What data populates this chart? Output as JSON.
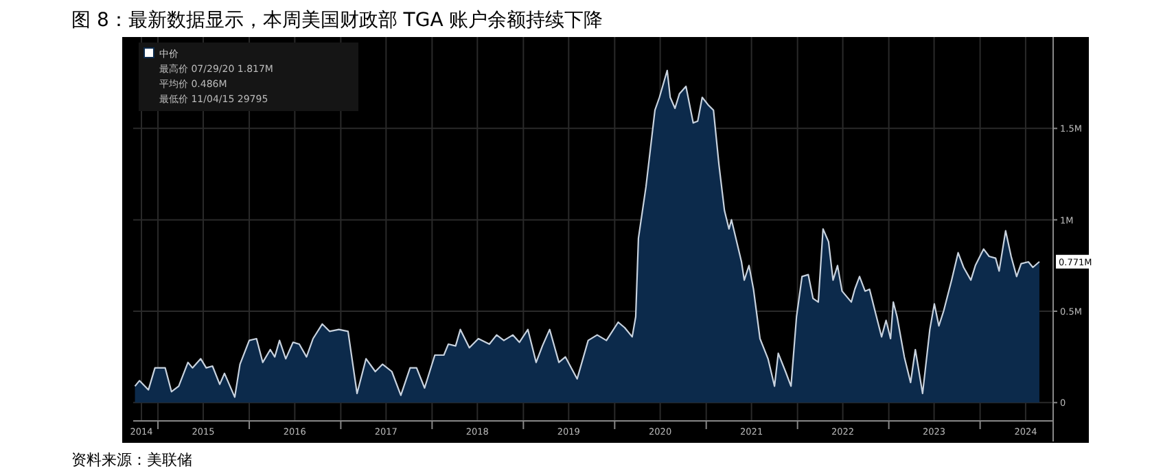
{
  "chart_data": {
    "type": "area",
    "title": "图 8：最新数据显示，本周美国财政部 TGA 账户余额持续下降",
    "annotations": [
      "资料来源：美联储",
      "最高价 07/29/20 1.817M",
      "平均价 0.486M",
      "最低价 11/04/15 29795",
      {
        "text": "0.771M",
        "x": "2024-08-25",
        "y": 0.771
      }
    ],
    "legend": "top left",
    "grid": true,
    "xlim": [
      "2014-09-24",
      "2024-10-19"
    ],
    "ylim": [
      -0.1,
      2.0
    ],
    "yticks": [
      0,
      {
        "value": 0.5,
        "label": "0.5M"
      },
      {
        "value": 1,
        "label": "1M"
      },
      {
        "value": 1.5,
        "label": "1.5M"
      }
    ],
    "xticks": [
      {
        "value": "2014-10-27",
        "label": "2014"
      },
      {
        "value": "2015-07-01",
        "label": "2015"
      },
      {
        "value": "2016-07-01",
        "label": "2016"
      },
      {
        "value": "2017-07-01",
        "label": "2017"
      },
      {
        "value": "2018-07-01",
        "label": "2018"
      },
      {
        "value": "2019-07-01",
        "label": "2019"
      },
      {
        "value": "2020-07-01",
        "label": "2020"
      },
      {
        "value": "2021-07-01",
        "label": "2021"
      },
      {
        "value": "2022-07-01",
        "label": "2022"
      },
      {
        "value": "2023-07-01",
        "label": "2023"
      },
      {
        "value": "2024-07-01",
        "label": "2024"
      },
      {
        "value": "2015-01-01",
        "label": null
      },
      {
        "value": "2016-01-01",
        "label": null
      },
      {
        "value": "2017-01-01",
        "label": null
      },
      {
        "value": "2018-01-01",
        "label": null
      },
      {
        "value": "2019-01-01",
        "label": null
      },
      {
        "value": "2020-01-01",
        "label": null
      },
      {
        "value": "2021-01-01",
        "label": null
      },
      {
        "value": "2022-01-01",
        "label": null
      },
      {
        "value": "2023-01-01",
        "label": null
      },
      {
        "value": "2024-01-01",
        "label": null
      }
    ],
    "x": [
      "2014-10-01",
      "2014-10-19",
      "2014-11-24",
      "2014-12-20",
      "2015-01-30",
      "2015-02-24",
      "2015-03-25",
      "2015-05-01",
      "2015-05-19",
      "2015-06-21",
      "2015-07-13",
      "2015-08-07",
      "2015-09-05",
      "2015-09-24",
      "2015-11-04",
      "2015-11-25",
      "2016-01-01",
      "2016-01-30",
      "2016-02-24",
      "2016-03-25",
      "2016-04-12",
      "2016-05-01",
      "2016-05-26",
      "2016-06-24",
      "2016-07-19",
      "2016-08-17",
      "2016-09-12",
      "2016-10-19",
      "2016-11-17",
      "2016-12-24",
      "2017-01-30",
      "2017-03-07",
      "2017-04-12",
      "2017-05-19",
      "2017-06-17",
      "2017-07-24",
      "2017-08-29",
      "2017-10-05",
      "2017-10-31",
      "2017-12-02",
      "2018-01-12",
      "2018-02-17",
      "2018-03-07",
      "2018-04-05",
      "2018-04-24",
      "2018-05-30",
      "2018-07-05",
      "2018-08-18",
      "2018-09-16",
      "2018-10-15",
      "2018-11-20",
      "2018-12-16",
      "2019-01-19",
      "2019-02-21",
      "2019-03-18",
      "2019-04-16",
      "2019-05-23",
      "2019-06-18",
      "2019-08-04",
      "2019-09-17",
      "2019-10-23",
      "2019-11-29",
      "2020-01-15",
      "2020-02-10",
      "2020-03-11",
      "2020-03-25",
      "2020-04-05",
      "2020-05-05",
      "2020-06-10",
      "2020-06-28",
      "2020-07-29",
      "2020-08-10",
      "2020-08-29",
      "2020-09-16",
      "2020-10-12",
      "2020-11-10",
      "2020-11-28",
      "2020-12-16",
      "2021-01-08",
      "2021-01-30",
      "2021-02-21",
      "2021-03-15",
      "2021-04-02",
      "2021-04-12",
      "2021-05-22",
      "2021-06-02",
      "2021-06-21",
      "2021-07-09",
      "2021-08-04",
      "2021-09-05",
      "2021-10-01",
      "2021-10-16",
      "2021-11-14",
      "2021-12-06",
      "2021-12-28",
      "2022-01-19",
      "2022-02-13",
      "2022-03-04",
      "2022-03-25",
      "2022-04-13",
      "2022-05-05",
      "2022-05-23",
      "2022-06-10",
      "2022-06-28",
      "2022-08-04",
      "2022-08-18",
      "2022-09-06",
      "2022-09-28",
      "2022-10-16",
      "2022-11-07",
      "2022-12-03",
      "2022-12-21",
      "2023-01-08",
      "2023-01-19",
      "2023-02-03",
      "2023-03-04",
      "2023-03-29",
      "2023-04-17",
      "2023-05-16",
      "2023-06-14",
      "2023-07-02",
      "2023-07-20",
      "2023-08-08",
      "2023-09-09",
      "2023-10-05",
      "2023-10-27",
      "2023-11-25",
      "2023-12-13",
      "2024-01-15",
      "2024-02-06",
      "2024-03-03",
      "2024-03-17",
      "2024-04-12",
      "2024-05-04",
      "2024-05-26",
      "2024-06-13",
      "2024-07-12",
      "2024-07-30",
      "2024-08-25"
    ],
    "series": [
      {
        "name": "中价",
        "color": "#0c2a4b",
        "values": [
          0.09,
          0.12,
          0.07,
          0.19,
          0.19,
          0.06,
          0.09,
          0.22,
          0.19,
          0.24,
          0.19,
          0.2,
          0.1,
          0.16,
          0.03,
          0.21,
          0.34,
          0.35,
          0.22,
          0.29,
          0.25,
          0.34,
          0.24,
          0.33,
          0.32,
          0.25,
          0.35,
          0.43,
          0.39,
          0.4,
          0.39,
          0.05,
          0.24,
          0.17,
          0.21,
          0.17,
          0.04,
          0.19,
          0.19,
          0.08,
          0.26,
          0.26,
          0.32,
          0.31,
          0.4,
          0.3,
          0.35,
          0.32,
          0.37,
          0.34,
          0.37,
          0.33,
          0.4,
          0.22,
          0.31,
          0.4,
          0.22,
          0.25,
          0.13,
          0.34,
          0.37,
          0.34,
          0.44,
          0.41,
          0.36,
          0.47,
          0.9,
          1.18,
          1.6,
          1.67,
          1.817,
          1.67,
          1.61,
          1.69,
          1.73,
          1.53,
          1.54,
          1.67,
          1.63,
          1.6,
          1.3,
          1.05,
          0.95,
          1.0,
          0.77,
          0.67,
          0.75,
          0.62,
          0.35,
          0.24,
          0.09,
          0.27,
          0.17,
          0.09,
          0.47,
          0.69,
          0.7,
          0.57,
          0.55,
          0.95,
          0.88,
          0.67,
          0.75,
          0.61,
          0.55,
          0.62,
          0.69,
          0.61,
          0.62,
          0.5,
          0.36,
          0.45,
          0.35,
          0.55,
          0.47,
          0.25,
          0.11,
          0.29,
          0.05,
          0.4,
          0.54,
          0.42,
          0.5,
          0.67,
          0.82,
          0.74,
          0.67,
          0.75,
          0.84,
          0.8,
          0.79,
          0.72,
          0.94,
          0.8,
          0.69,
          0.76,
          0.77,
          0.74,
          0.771
        ]
      }
    ]
  }
}
